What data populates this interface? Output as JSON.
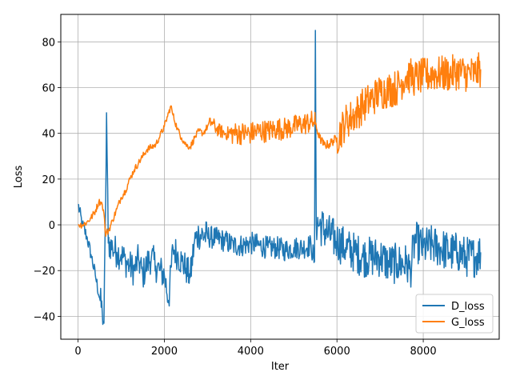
{
  "chart_data": {
    "type": "line",
    "title": "",
    "xlabel": "Iter",
    "ylabel": "Loss",
    "xlim": [
      -400,
      9760
    ],
    "ylim": [
      -50,
      92
    ],
    "xticks": [
      0,
      2000,
      4000,
      6000,
      8000
    ],
    "xtick_labels": [
      "0",
      "2000",
      "4000",
      "6000",
      "8000"
    ],
    "yticks": [
      -40,
      -20,
      0,
      20,
      40,
      60,
      80
    ],
    "ytick_labels": [
      "−40",
      "−20",
      "0",
      "20",
      "40",
      "60",
      "80"
    ],
    "grid": true,
    "legend_position": "lower-right",
    "series": [
      {
        "name": "D_loss",
        "color": "#1f77b4",
        "x": [
          0,
          100,
          200,
          300,
          400,
          500,
          560,
          600,
          640,
          660,
          700,
          800,
          900,
          1000,
          1100,
          1200,
          1300,
          1400,
          1500,
          1600,
          1700,
          1800,
          1900,
          2000,
          2100,
          2200,
          2300,
          2400,
          2500,
          2600,
          2700,
          2800,
          3000,
          3200,
          3400,
          3600,
          3800,
          4000,
          4200,
          4400,
          4600,
          4800,
          5000,
          5200,
          5400,
          5480,
          5500,
          5520,
          5600,
          5800,
          6000,
          6200,
          6400,
          6600,
          6800,
          7000,
          7200,
          7400,
          7600,
          7700,
          7800,
          8000,
          8200,
          8400,
          8600,
          8800,
          9000,
          9200,
          9330
        ],
        "y": [
          9,
          0,
          -5,
          -13,
          -22,
          -32,
          -38,
          -43,
          10,
          49,
          -8,
          -10,
          -12,
          -13,
          -16,
          -18,
          -20,
          -15,
          -22,
          -17,
          -14,
          -18,
          -20,
          -22,
          -33,
          -10,
          -13,
          -16,
          -19,
          -23,
          -7,
          -4,
          -5,
          -6,
          -7,
          -9,
          -9,
          -8,
          -9,
          -10,
          -10,
          -11,
          -10,
          -10,
          -9,
          -16,
          85,
          1,
          0,
          -4,
          -7,
          -10,
          -12,
          -14,
          -14,
          -14,
          -17,
          -17,
          -17,
          -20,
          -7,
          -10,
          -9,
          -10,
          -12,
          -12,
          -14,
          -14,
          -12
        ]
      },
      {
        "name": "G_loss",
        "color": "#ff7f0e",
        "x": [
          0,
          100,
          200,
          300,
          400,
          480,
          520,
          560,
          600,
          640,
          660,
          700,
          800,
          900,
          1000,
          1100,
          1200,
          1300,
          1400,
          1500,
          1600,
          1700,
          1800,
          1900,
          2000,
          2100,
          2150,
          2200,
          2300,
          2400,
          2500,
          2600,
          2700,
          2800,
          2900,
          3000,
          3100,
          3200,
          3400,
          3600,
          3800,
          4000,
          4200,
          4400,
          4600,
          4800,
          5000,
          5200,
          5400,
          5480,
          5500,
          5600,
          5700,
          5800,
          6000,
          6200,
          6400,
          6600,
          6800,
          7000,
          7200,
          7400,
          7600,
          7700,
          7800,
          8000,
          8200,
          8400,
          8600,
          8800,
          9000,
          9200,
          9330
        ],
        "y": [
          0,
          0,
          1,
          3,
          6,
          10,
          10,
          9,
          5,
          -5,
          -3,
          -3,
          2,
          7,
          12,
          15,
          20,
          24,
          27,
          30,
          33,
          34,
          35,
          39,
          43,
          49,
          52,
          48,
          42,
          38,
          35,
          34,
          38,
          41,
          40,
          43,
          45,
          42,
          40,
          40,
          40,
          40,
          41,
          41,
          42,
          42,
          43,
          44,
          45,
          45,
          44,
          38,
          35,
          35,
          38,
          45,
          48,
          52,
          55,
          58,
          59,
          60,
          65,
          65,
          64,
          65,
          66,
          66,
          66,
          67,
          66,
          66,
          68
        ]
      }
    ]
  }
}
